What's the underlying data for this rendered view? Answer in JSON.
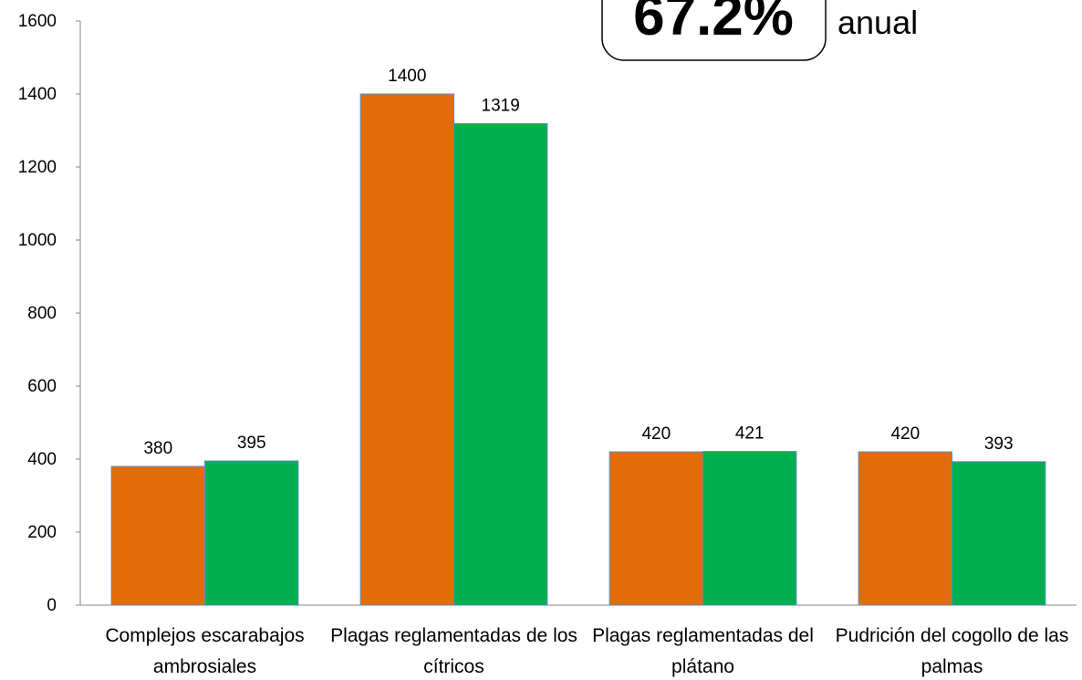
{
  "chart_data": {
    "type": "bar",
    "categories": [
      "Complejos escarabajos ambrosiales",
      "Plagas reglamentadas de los cítricos",
      "Plagas reglamentadas del plátano",
      "Pudrición del cogollo de las palmas"
    ],
    "series": [
      {
        "color": "#e36c0a",
        "values": [
          380,
          1400,
          420,
          420
        ]
      },
      {
        "color": "#00b050",
        "values": [
          395,
          1319,
          421,
          393
        ]
      }
    ],
    "ylim": [
      0,
      1600
    ],
    "yticks": [
      0,
      200,
      400,
      600,
      800,
      1000,
      1200,
      1400,
      1600
    ],
    "grid": false,
    "annotations": [
      "67.2%",
      "anual"
    ]
  }
}
